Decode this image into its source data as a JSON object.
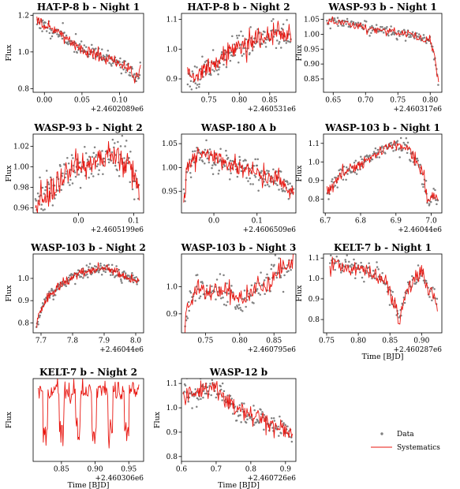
{
  "chart_data": [
    {
      "type": "line",
      "title": "HAT-P-8 b - Night 1",
      "ylabel": "Flux",
      "xlabel": "",
      "x_offset_label": "+2.4602089e6",
      "xlim": [
        -0.015,
        0.132
      ],
      "ylim": [
        0.78,
        1.21
      ],
      "xticks": [
        0.0,
        0.05,
        0.1
      ],
      "xtick_labels": [
        "0.00",
        "0.05",
        "0.10"
      ],
      "yticks": [
        0.8,
        1.0,
        1.2
      ],
      "ytick_labels": [
        "0.8",
        "1.0",
        "1.2"
      ],
      "trend": {
        "x": [
          -0.01,
          0.0,
          0.02,
          0.04,
          0.06,
          0.08,
          0.1,
          0.115,
          0.12,
          0.125,
          0.128
        ],
        "y": [
          1.17,
          1.14,
          1.1,
          1.04,
          1.0,
          0.97,
          0.94,
          0.9,
          0.85,
          0.87,
          0.92
        ]
      },
      "noise": 0.02,
      "n_points": 160,
      "n_line": 160,
      "seed": 11
    },
    {
      "type": "line",
      "title": "HAT-P-8 b - Night 2",
      "ylabel": "",
      "xlabel": "",
      "x_offset_label": "+2.460531e6",
      "xlim": [
        0.705,
        0.893
      ],
      "ylim": [
        0.855,
        1.12
      ],
      "xticks": [
        0.75,
        0.8,
        0.85
      ],
      "xtick_labels": [
        "0.75",
        "0.80",
        "0.85"
      ],
      "yticks": [
        0.9,
        1.0,
        1.1
      ],
      "ytick_labels": [
        "0.9",
        "1.0",
        "1.1"
      ],
      "trend": {
        "x": [
          0.715,
          0.735,
          0.76,
          0.775,
          0.79,
          0.81,
          0.83,
          0.85,
          0.87,
          0.885
        ],
        "y": [
          0.91,
          0.92,
          0.95,
          0.98,
          1.0,
          1.01,
          1.03,
          1.05,
          1.05,
          1.04
        ]
      },
      "noise": 0.022,
      "n_points": 160,
      "n_line": 160,
      "seed": 23
    },
    {
      "type": "line",
      "title": "WASP-93 b - Night 1",
      "ylabel": "Flux",
      "xlabel": "",
      "x_offset_label": "+2.460317e6",
      "xlim": [
        0.635,
        0.818
      ],
      "ylim": [
        0.805,
        1.07
      ],
      "xticks": [
        0.65,
        0.7,
        0.75,
        0.8
      ],
      "xtick_labels": [
        "0.65",
        "0.70",
        "0.75",
        "0.80"
      ],
      "yticks": [
        0.85,
        0.9,
        0.95,
        1.0,
        1.05
      ],
      "ytick_labels": [
        "0.85",
        "0.90",
        "0.95",
        "1.00",
        "1.05"
      ],
      "trend": {
        "x": [
          0.64,
          0.66,
          0.7,
          0.74,
          0.77,
          0.79,
          0.8,
          0.805,
          0.81,
          0.813
        ],
        "y": [
          1.04,
          1.04,
          1.02,
          1.01,
          1.0,
          0.98,
          0.98,
          0.94,
          0.88,
          0.83
        ]
      },
      "noise": 0.01,
      "n_points": 140,
      "n_line": 140,
      "seed": 37
    },
    {
      "type": "line",
      "title": "WASP-93 b - Night 2",
      "ylabel": "Flux",
      "xlabel": "",
      "x_offset_label": "+2.4605199e6",
      "xlim": [
        -0.082,
        0.118
      ],
      "ylim": [
        0.955,
        1.032
      ],
      "xticks": [
        0.0,
        0.1
      ],
      "xtick_labels": [
        "0.0",
        "0.1"
      ],
      "yticks": [
        0.96,
        0.98,
        1.0,
        1.02
      ],
      "ytick_labels": [
        "0.96",
        "0.98",
        "1.00",
        "1.02"
      ],
      "trend": {
        "x": [
          -0.078,
          -0.05,
          -0.02,
          0.0,
          0.03,
          0.06,
          0.09,
          0.11
        ],
        "y": [
          0.968,
          0.975,
          0.995,
          1.0,
          1.005,
          1.01,
          1.005,
          0.98
        ]
      },
      "noise": 0.009,
      "n_points": 150,
      "n_line": 150,
      "seed": 41
    },
    {
      "type": "line",
      "title": "WASP-180 A b",
      "ylabel": "",
      "xlabel": "",
      "x_offset_label": "+2.4606509e6",
      "xlim": [
        -0.075,
        0.19
      ],
      "ylim": [
        0.905,
        1.07
      ],
      "xticks": [
        0.0,
        0.1
      ],
      "xtick_labels": [
        "0.0",
        "0.1"
      ],
      "yticks": [
        0.95,
        1.0,
        1.05
      ],
      "ytick_labels": [
        "0.95",
        "1.00",
        "1.05"
      ],
      "trend": {
        "x": [
          -0.07,
          -0.06,
          -0.04,
          -0.02,
          0.0,
          0.05,
          0.1,
          0.15,
          0.185
        ],
        "y": [
          0.93,
          1.0,
          1.03,
          1.03,
          1.02,
          1.0,
          0.99,
          0.97,
          0.95
        ]
      },
      "noise": 0.013,
      "n_points": 170,
      "n_line": 170,
      "seed": 53
    },
    {
      "type": "line",
      "title": "WASP-103 b - Night 1",
      "ylabel": "Flux",
      "xlabel": "",
      "x_offset_label": "+2.46044e6",
      "xlim": [
        6.695,
        7.03
      ],
      "ylim": [
        0.725,
        1.15
      ],
      "xticks": [
        6.7,
        6.8,
        6.9,
        7.0
      ],
      "xtick_labels": [
        "6.7",
        "6.8",
        "6.9",
        "7.0"
      ],
      "yticks": [
        0.8,
        0.9,
        1.0,
        1.1
      ],
      "ytick_labels": [
        "0.8",
        "0.9",
        "1.0",
        "1.1"
      ],
      "trend": {
        "x": [
          6.705,
          6.74,
          6.8,
          6.86,
          6.9,
          6.93,
          6.96,
          6.98,
          6.995,
          7.005,
          7.02
        ],
        "y": [
          0.84,
          0.92,
          0.99,
          1.06,
          1.1,
          1.07,
          1.0,
          0.9,
          0.77,
          0.83,
          0.8
        ]
      },
      "noise": 0.022,
      "n_points": 150,
      "n_line": 150,
      "seed": 67
    },
    {
      "type": "line",
      "title": "WASP-103 b - Night 2",
      "ylabel": "Flux",
      "xlabel": "",
      "x_offset_label": "+2.46044e6",
      "xlim": [
        7.675,
        8.025
      ],
      "ylim": [
        0.755,
        1.11
      ],
      "xticks": [
        7.7,
        7.8,
        7.9,
        8.0
      ],
      "xtick_labels": [
        "7.7",
        "7.8",
        "7.9",
        "8.0"
      ],
      "yticks": [
        0.8,
        0.9,
        1.0
      ],
      "ytick_labels": [
        "0.8",
        "0.9",
        "1.0"
      ],
      "trend": {
        "x": [
          7.685,
          7.7,
          7.73,
          7.77,
          7.82,
          7.87,
          7.9,
          7.94,
          7.98,
          8.01
        ],
        "y": [
          0.79,
          0.86,
          0.93,
          0.98,
          1.02,
          1.04,
          1.05,
          1.03,
          1.0,
          0.99
        ]
      },
      "noise": 0.014,
      "n_points": 180,
      "n_line": 180,
      "seed": 71
    },
    {
      "type": "line",
      "title": "WASP-103 b - Night 3",
      "ylabel": "",
      "xlabel": "",
      "x_offset_label": "+2.460795e6",
      "xlim": [
        0.715,
        0.882
      ],
      "ylim": [
        0.83,
        1.12
      ],
      "xticks": [
        0.75,
        0.8,
        0.85
      ],
      "xtick_labels": [
        "0.75",
        "0.80",
        "0.85"
      ],
      "yticks": [
        0.9,
        1.0
      ],
      "ytick_labels": [
        "0.9",
        "1.0"
      ],
      "trend": {
        "x": [
          0.72,
          0.727,
          0.735,
          0.76,
          0.78,
          0.8,
          0.82,
          0.84,
          0.86,
          0.878
        ],
        "y": [
          0.86,
          0.95,
          0.98,
          0.99,
          0.98,
          0.95,
          0.98,
          1.02,
          1.06,
          1.08
        ]
      },
      "noise": 0.025,
      "n_points": 130,
      "n_line": 130,
      "seed": 83
    },
    {
      "type": "line",
      "title": "KELT-7 b - Night 1",
      "ylabel": "Flux",
      "xlabel": "Time [BJD]",
      "x_offset_label": "+2.460287e6",
      "xlim": [
        0.745,
        0.932
      ],
      "ylim": [
        0.735,
        1.12
      ],
      "xticks": [
        0.75,
        0.8,
        0.85,
        0.9
      ],
      "xtick_labels": [
        "0.75",
        "0.80",
        "0.85",
        "0.90"
      ],
      "yticks": [
        0.8,
        0.9,
        1.0,
        1.1
      ],
      "ytick_labels": [
        "0.8",
        "0.9",
        "1.0",
        "1.1"
      ],
      "trend": {
        "x": [
          0.755,
          0.8,
          0.83,
          0.845,
          0.86,
          0.865,
          0.875,
          0.89,
          0.9,
          0.91,
          0.925
        ],
        "y": [
          1.07,
          1.05,
          1.02,
          0.97,
          0.84,
          0.8,
          0.92,
          1.0,
          1.03,
          0.95,
          0.88
        ]
      },
      "noise": 0.028,
      "n_points": 130,
      "n_line": 130,
      "seed": 97
    },
    {
      "type": "line",
      "title": "KELT-7 b - Night 2",
      "ylabel": "Flux",
      "xlabel": "Time [BJD]",
      "x_offset_label": "+2.460306e6",
      "xlim": [
        0.808,
        0.972
      ],
      "ylim": [
        0.0,
        1.32
      ],
      "xticks": [
        0.85,
        0.9,
        0.95
      ],
      "xtick_labels": [
        "0.85",
        "0.90",
        "0.95"
      ],
      "yticks": [],
      "ytick_labels": [],
      "trend": {
        "x": [
          0.815,
          0.83,
          0.86,
          0.9,
          0.94,
          0.955,
          0.965
        ],
        "y": [
          0.95,
          1.0,
          0.95,
          0.9,
          0.85,
          0.5,
          0.35
        ]
      },
      "noise": 0.3,
      "n_points": 0,
      "n_line": 150,
      "seed": 101
    },
    {
      "type": "line",
      "title": "WASP-12 b",
      "ylabel": "Flux",
      "xlabel": "Time [BJD]",
      "x_offset_label": "+2.460726e6",
      "xlim": [
        0.6,
        0.93
      ],
      "ylim": [
        0.78,
        1.12
      ],
      "xticks": [
        0.6,
        0.7,
        0.8,
        0.9
      ],
      "xtick_labels": [
        "0.6",
        "0.7",
        "0.8",
        "0.9"
      ],
      "yticks": [
        0.8,
        0.9,
        1.0,
        1.1
      ],
      "ytick_labels": [
        "0.8",
        "0.9",
        "1.0",
        "1.1"
      ],
      "trend": {
        "x": [
          0.605,
          0.65,
          0.7,
          0.74,
          0.76,
          0.8,
          0.84,
          0.88,
          0.92
        ],
        "y": [
          1.05,
          1.06,
          1.08,
          1.02,
          0.99,
          0.97,
          0.95,
          0.92,
          0.9
        ]
      },
      "noise": 0.024,
      "n_points": 150,
      "n_line": 150,
      "seed": 113
    }
  ],
  "legend": {
    "items": [
      {
        "label": "Data",
        "type": "scatter",
        "color": "#808080"
      },
      {
        "label": "Systematics",
        "type": "line",
        "color": "#e8150f"
      }
    ]
  }
}
